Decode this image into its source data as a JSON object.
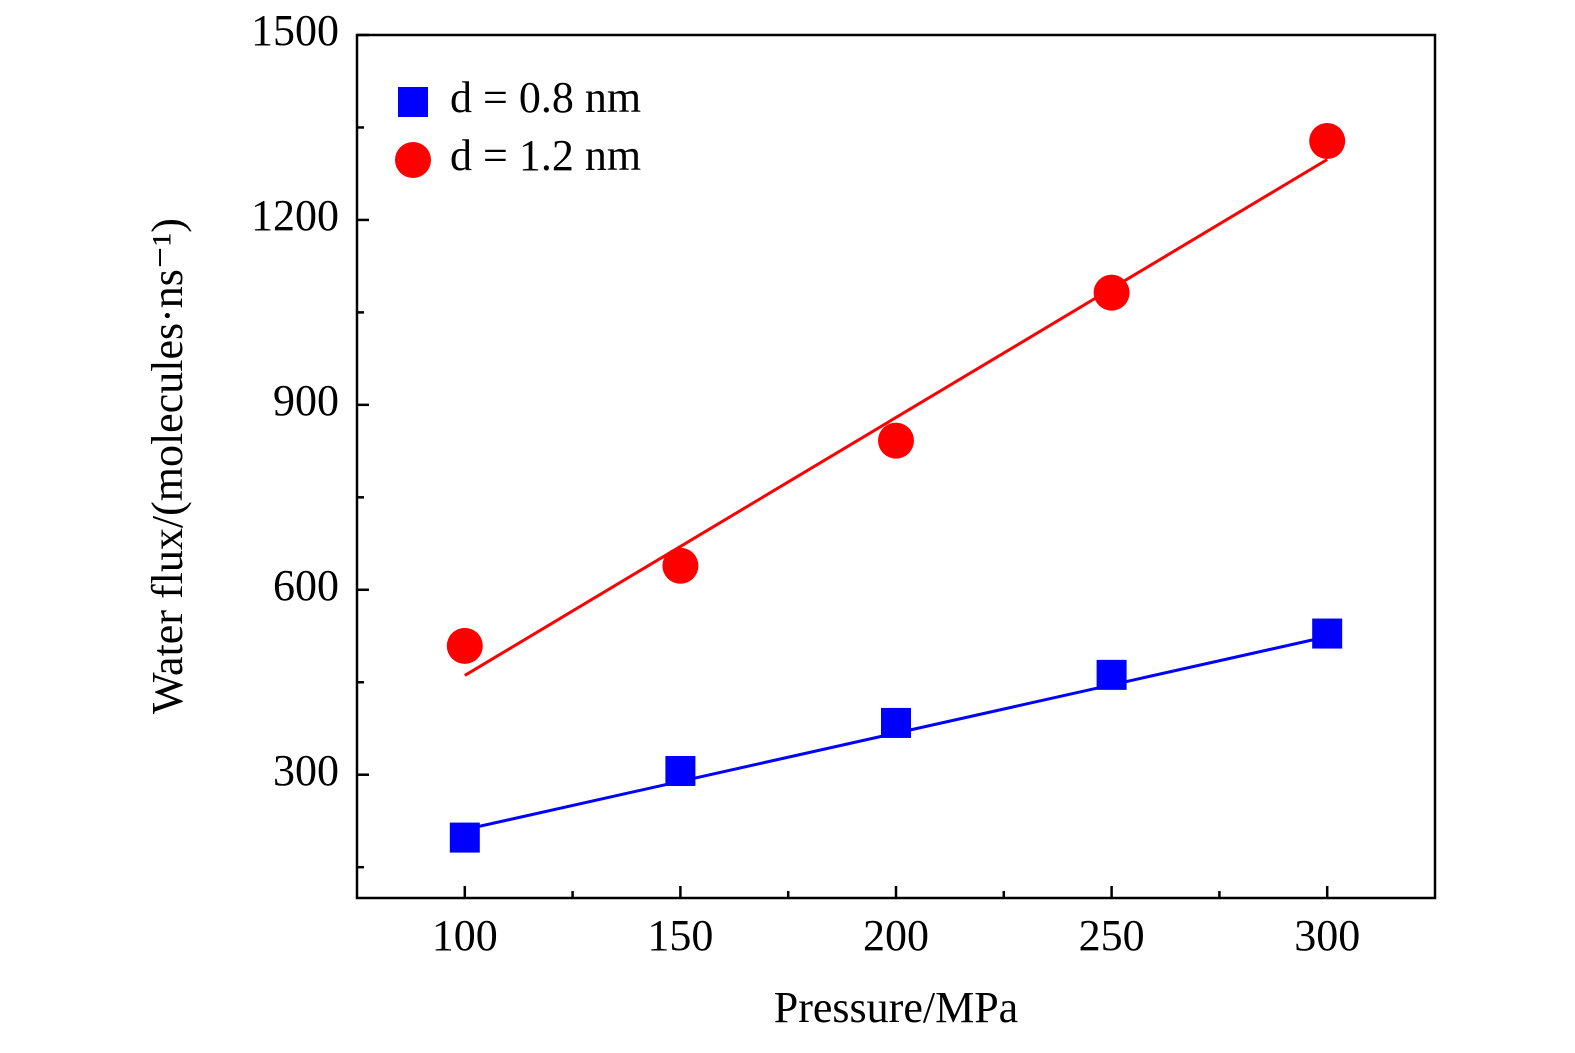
{
  "chart_data": {
    "type": "scatter",
    "x_label": "Pressure/MPa",
    "y_label": "Water flux/(molecules·ns⁻¹)",
    "x": [
      100,
      150,
      200,
      250,
      300
    ],
    "fit_x": [
      100,
      300
    ],
    "series": [
      {
        "name": "d = 0.8 nm",
        "color": "#0000ff",
        "marker": "square",
        "values": [
          198,
          306,
          384,
          462,
          529
        ],
        "fit_values": [
          211,
          524
        ]
      },
      {
        "name": "d = 1.2 nm",
        "color": "#ff0000",
        "marker": "circle",
        "values": [
          509,
          639,
          842,
          1082,
          1328
        ],
        "fit_values": [
          461,
          1298
        ]
      }
    ],
    "xlim": [
      75,
      325
    ],
    "xticks": [
      100,
      150,
      200,
      250,
      300
    ],
    "xminorticks": [
      125,
      175,
      225,
      275
    ],
    "ylim": [
      100,
      1500
    ],
    "yticks": [
      300,
      600,
      900,
      1200,
      1500
    ],
    "yminorticks": [
      150,
      450,
      750,
      1050,
      1350
    ],
    "legend": "upper-left",
    "grid": false
  }
}
